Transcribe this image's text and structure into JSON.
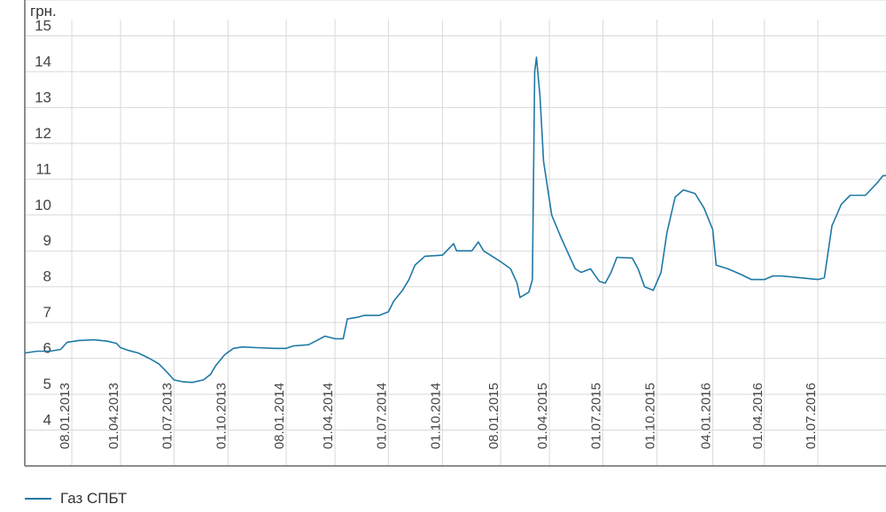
{
  "chart_data": {
    "type": "line",
    "ylabel": "грн.",
    "ylim": [
      3,
      16
    ],
    "yticks": [
      4,
      5,
      6,
      7,
      8,
      9,
      10,
      11,
      12,
      13,
      14,
      15
    ],
    "xlim": [
      "2012-10-20",
      "2016-10-25"
    ],
    "xticks": [
      "08.01.2013",
      "01.04.2013",
      "01.07.2013",
      "01.10.2013",
      "08.01.2014",
      "01.04.2014",
      "01.07.2014",
      "01.10.2014",
      "08.01.2015",
      "01.04.2015",
      "01.07.2015",
      "01.10.2015",
      "04.01.2016",
      "01.04.2016",
      "01.07.2016"
    ],
    "grid": true,
    "legend_position": "bottom-left",
    "series": [
      {
        "name": "Газ СПБТ",
        "color": "#1f78a6",
        "points": [
          [
            "2012-10-20",
            6.15
          ],
          [
            "2012-11-10",
            6.2
          ],
          [
            "2012-12-01",
            6.2
          ],
          [
            "2012-12-20",
            6.25
          ],
          [
            "2012-12-31",
            6.45
          ],
          [
            "2013-01-20",
            6.5
          ],
          [
            "2013-02-15",
            6.52
          ],
          [
            "2013-03-10",
            6.48
          ],
          [
            "2013-03-25",
            6.42
          ],
          [
            "2013-04-01",
            6.3
          ],
          [
            "2013-04-15",
            6.22
          ],
          [
            "2013-05-01",
            6.15
          ],
          [
            "2013-05-20",
            6.0
          ],
          [
            "2013-06-05",
            5.85
          ],
          [
            "2013-06-20",
            5.6
          ],
          [
            "2013-07-01",
            5.4
          ],
          [
            "2013-07-15",
            5.35
          ],
          [
            "2013-08-01",
            5.33
          ],
          [
            "2013-08-20",
            5.4
          ],
          [
            "2013-09-01",
            5.55
          ],
          [
            "2013-09-10",
            5.8
          ],
          [
            "2013-09-25",
            6.1
          ],
          [
            "2013-10-10",
            6.28
          ],
          [
            "2013-10-25",
            6.32
          ],
          [
            "2013-11-20",
            6.3
          ],
          [
            "2013-12-20",
            6.28
          ],
          [
            "2014-01-08",
            6.28
          ],
          [
            "2014-01-20",
            6.35
          ],
          [
            "2014-02-15",
            6.38
          ],
          [
            "2014-03-01",
            6.5
          ],
          [
            "2014-03-15",
            6.62
          ],
          [
            "2014-04-01",
            6.55
          ],
          [
            "2014-04-15",
            6.55
          ],
          [
            "2014-04-22",
            7.1
          ],
          [
            "2014-05-10",
            7.15
          ],
          [
            "2014-05-20",
            7.2
          ],
          [
            "2014-06-15",
            7.2
          ],
          [
            "2014-07-01",
            7.3
          ],
          [
            "2014-07-10",
            7.6
          ],
          [
            "2014-07-25",
            7.9
          ],
          [
            "2014-08-05",
            8.2
          ],
          [
            "2014-08-15",
            8.6
          ],
          [
            "2014-09-01",
            8.85
          ],
          [
            "2014-10-01",
            8.88
          ],
          [
            "2014-10-20",
            9.2
          ],
          [
            "2014-10-25",
            9.0
          ],
          [
            "2014-11-20",
            9.0
          ],
          [
            "2014-12-01",
            9.25
          ],
          [
            "2014-12-10",
            9.0
          ],
          [
            "2015-01-08",
            8.7
          ],
          [
            "2015-01-25",
            8.5
          ],
          [
            "2015-02-05",
            8.1
          ],
          [
            "2015-02-10",
            7.7
          ],
          [
            "2015-02-25",
            7.85
          ],
          [
            "2015-03-03",
            8.2
          ],
          [
            "2015-03-07",
            14.0
          ],
          [
            "2015-03-10",
            14.4
          ],
          [
            "2015-03-16",
            13.3
          ],
          [
            "2015-03-22",
            11.5
          ],
          [
            "2015-04-05",
            10.0
          ],
          [
            "2015-04-20",
            9.4
          ],
          [
            "2015-05-01",
            9.0
          ],
          [
            "2015-05-15",
            8.5
          ],
          [
            "2015-05-25",
            8.4
          ],
          [
            "2015-06-10",
            8.5
          ],
          [
            "2015-06-25",
            8.15
          ],
          [
            "2015-07-05",
            8.1
          ],
          [
            "2015-07-15",
            8.4
          ],
          [
            "2015-07-25",
            8.82
          ],
          [
            "2015-08-20",
            8.8
          ],
          [
            "2015-08-30",
            8.5
          ],
          [
            "2015-09-10",
            8.0
          ],
          [
            "2015-09-25",
            7.9
          ],
          [
            "2015-10-08",
            8.4
          ],
          [
            "2015-10-18",
            9.5
          ],
          [
            "2015-11-01",
            10.5
          ],
          [
            "2015-11-15",
            10.7
          ],
          [
            "2015-12-05",
            10.6
          ],
          [
            "2015-12-20",
            10.2
          ],
          [
            "2016-01-04",
            9.6
          ],
          [
            "2016-01-10",
            8.6
          ],
          [
            "2016-01-30",
            8.5
          ],
          [
            "2016-02-20",
            8.35
          ],
          [
            "2016-03-10",
            8.2
          ],
          [
            "2016-04-01",
            8.2
          ],
          [
            "2016-04-15",
            8.3
          ],
          [
            "2016-05-01",
            8.3
          ],
          [
            "2016-06-01",
            8.25
          ],
          [
            "2016-07-01",
            8.2
          ],
          [
            "2016-07-12",
            8.25
          ],
          [
            "2016-07-25",
            9.7
          ],
          [
            "2016-08-10",
            10.3
          ],
          [
            "2016-08-25",
            10.55
          ],
          [
            "2016-09-20",
            10.55
          ],
          [
            "2016-10-10",
            10.9
          ],
          [
            "2016-10-20",
            11.1
          ],
          [
            "2016-10-25",
            11.1
          ]
        ]
      }
    ]
  }
}
